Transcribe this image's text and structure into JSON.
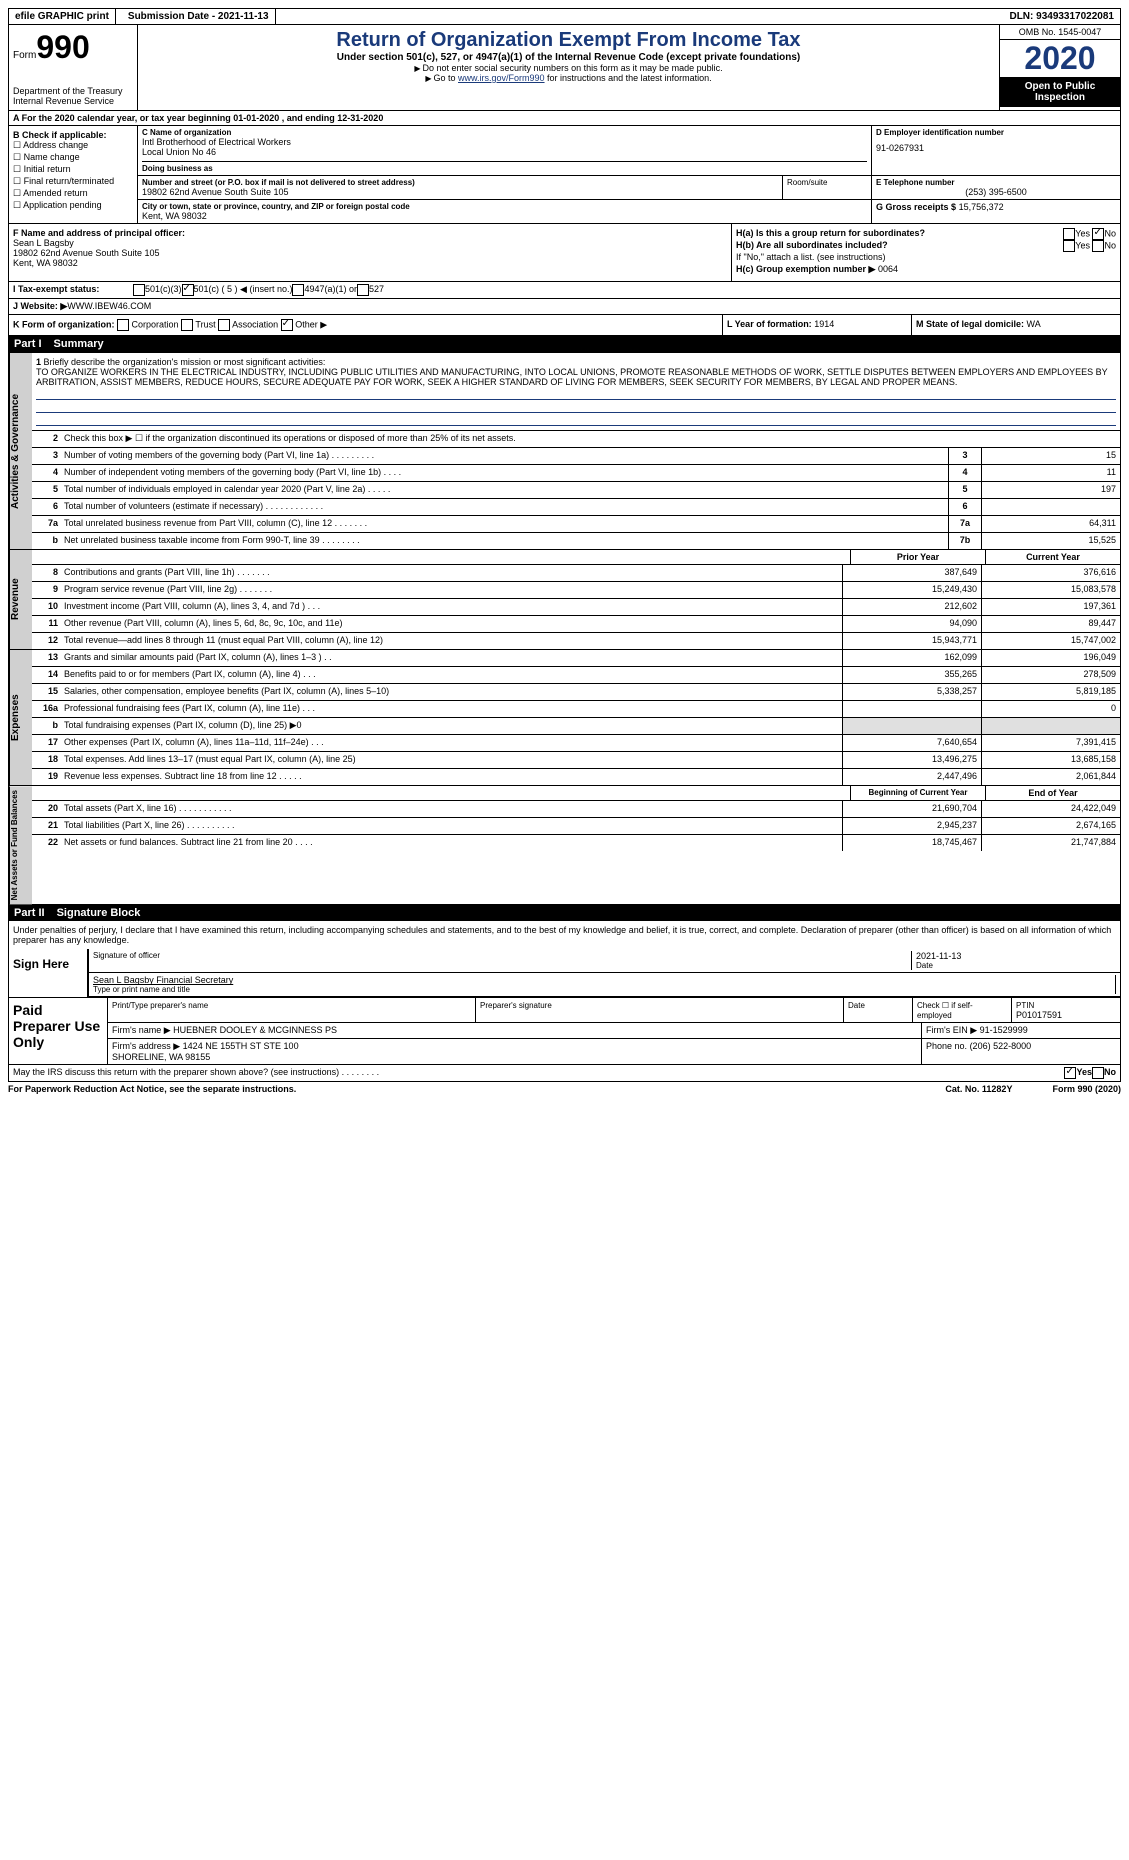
{
  "topbar": {
    "efile": "efile GRAPHIC print",
    "submission": "Submission Date - 2021-11-13",
    "dln": "DLN: 93493317022081"
  },
  "header": {
    "form_word": "Form",
    "form_num": "990",
    "dept": "Department of the Treasury\nInternal Revenue Service",
    "title": "Return of Organization Exempt From Income Tax",
    "subtitle": "Under section 501(c), 527, or 4947(a)(1) of the Internal Revenue Code (except private foundations)",
    "note1": "Do not enter social security numbers on this form as it may be made public.",
    "note2_pre": "Go to ",
    "note2_link": "www.irs.gov/Form990",
    "note2_post": " for instructions and the latest information.",
    "omb": "OMB No. 1545-0047",
    "year": "2020",
    "open": "Open to Public Inspection"
  },
  "rowA": "A For the 2020 calendar year, or tax year beginning 01-01-2020   , and ending 12-31-2020",
  "boxB": {
    "label": "B Check if applicable:",
    "items": [
      "Address change",
      "Name change",
      "Initial return",
      "Final return/terminated",
      "Amended return",
      "Application pending"
    ]
  },
  "boxC": {
    "name_label": "C Name of organization",
    "name": "Intl Brotherhood of Electrical Workers\nLocal Union No 46",
    "dba_label": "Doing business as",
    "street_label": "Number and street (or P.O. box if mail is not delivered to street address)",
    "suite_label": "Room/suite",
    "street": "19802 62nd Avenue South Suite 105",
    "city_label": "City or town, state or province, country, and ZIP or foreign postal code",
    "city": "Kent, WA  98032"
  },
  "boxD": {
    "label": "D Employer identification number",
    "value": "91-0267931"
  },
  "boxE": {
    "label": "E Telephone number",
    "value": "(253) 395-6500"
  },
  "boxG": {
    "label": "G Gross receipts $",
    "value": "15,756,372"
  },
  "boxF": {
    "label": "F Name and address of principal officer:",
    "name": "Sean L Bagsby",
    "addr1": "19802 62nd Avenue South Suite 105",
    "addr2": "Kent, WA  98032"
  },
  "boxH": {
    "a": "H(a)  Is this a group return for subordinates?",
    "b": "H(b)  Are all subordinates included?",
    "b_note": "If \"No,\" attach a list. (see instructions)",
    "c": "H(c)  Group exemption number ▶",
    "c_val": "0064",
    "yes": "Yes",
    "no": "No"
  },
  "rowI": {
    "label": "I  Tax-exempt status:",
    "opts": [
      "501(c)(3)",
      "501(c) ( 5 ) ◀ (insert no.)",
      "4947(a)(1) or",
      "527"
    ]
  },
  "rowJ": {
    "label": "J  Website: ▶",
    "value": "WWW.IBEW46.COM"
  },
  "rowK": {
    "label": "K Form of organization:",
    "opts": [
      "Corporation",
      "Trust",
      "Association",
      "Other ▶"
    ],
    "l_label": "L Year of formation:",
    "l_val": "1914",
    "m_label": "M State of legal domicile:",
    "m_val": "WA"
  },
  "partI": {
    "num": "Part I",
    "title": "Summary"
  },
  "mission": {
    "num": "1",
    "label": "Briefly describe the organization's mission or most significant activities:",
    "text": "TO ORGANIZE WORKERS IN THE ELECTRICAL INDUSTRY, INCLUDING PUBLIC UTILITIES AND MANUFACTURING, INTO LOCAL UNIONS, PROMOTE REASONABLE METHODS OF WORK, SETTLE DISPUTES BETWEEN EMPLOYERS AND EMPLOYEES BY ARBITRATION, ASSIST MEMBERS, REDUCE HOURS, SECURE ADEQUATE PAY FOR WORK, SEEK A HIGHER STANDARD OF LIVING FOR MEMBERS, SEEK SECURITY FOR MEMBERS, BY LEGAL AND PROPER MEANS."
  },
  "gov_lines": [
    {
      "n": "2",
      "d": "Check this box ▶ ☐ if the organization discontinued its operations or disposed of more than 25% of its net assets."
    },
    {
      "n": "3",
      "d": "Number of voting members of the governing body (Part VI, line 1a)   .   .   .   .   .   .   .   .   .",
      "b": "3",
      "v": "15"
    },
    {
      "n": "4",
      "d": "Number of independent voting members of the governing body (Part VI, line 1b)   .   .   .   .",
      "b": "4",
      "v": "11"
    },
    {
      "n": "5",
      "d": "Total number of individuals employed in calendar year 2020 (Part V, line 2a)   .   .   .   .   .",
      "b": "5",
      "v": "197"
    },
    {
      "n": "6",
      "d": "Total number of volunteers (estimate if necessary)   .   .   .   .   .   .   .   .   .   .   .   .",
      "b": "6",
      "v": ""
    },
    {
      "n": "7a",
      "d": "Total unrelated business revenue from Part VIII, column (C), line 12   .   .   .   .   .   .   .",
      "b": "7a",
      "v": "64,311"
    },
    {
      "n": "b",
      "d": "Net unrelated business taxable income from Form 990-T, line 39   .   .   .   .   .   .   .   .",
      "b": "7b",
      "v": "15,525"
    }
  ],
  "col_headers": {
    "prior": "Prior Year",
    "current": "Current Year"
  },
  "revenue": [
    {
      "n": "8",
      "d": "Contributions and grants (Part VIII, line 1h)   .   .   .   .   .   .   .",
      "p": "387,649",
      "c": "376,616"
    },
    {
      "n": "9",
      "d": "Program service revenue (Part VIII, line 2g)   .   .   .   .   .   .   .",
      "p": "15,249,430",
      "c": "15,083,578"
    },
    {
      "n": "10",
      "d": "Investment income (Part VIII, column (A), lines 3, 4, and 7d )   .   .   .",
      "p": "212,602",
      "c": "197,361"
    },
    {
      "n": "11",
      "d": "Other revenue (Part VIII, column (A), lines 5, 6d, 8c, 9c, 10c, and 11e)",
      "p": "94,090",
      "c": "89,447"
    },
    {
      "n": "12",
      "d": "Total revenue—add lines 8 through 11 (must equal Part VIII, column (A), line 12)",
      "p": "15,943,771",
      "c": "15,747,002"
    }
  ],
  "expenses": [
    {
      "n": "13",
      "d": "Grants and similar amounts paid (Part IX, column (A), lines 1–3 )   .   .",
      "p": "162,099",
      "c": "196,049"
    },
    {
      "n": "14",
      "d": "Benefits paid to or for members (Part IX, column (A), line 4)   .   .   .",
      "p": "355,265",
      "c": "278,509"
    },
    {
      "n": "15",
      "d": "Salaries, other compensation, employee benefits (Part IX, column (A), lines 5–10)",
      "p": "5,338,257",
      "c": "5,819,185"
    },
    {
      "n": "16a",
      "d": "Professional fundraising fees (Part IX, column (A), line 11e)   .   .   .",
      "p": "",
      "c": "0"
    },
    {
      "n": "b",
      "d": "Total fundraising expenses (Part IX, column (D), line 25) ▶0",
      "p": "",
      "c": "",
      "gray": true
    },
    {
      "n": "17",
      "d": "Other expenses (Part IX, column (A), lines 11a–11d, 11f–24e)   .   .   .",
      "p": "7,640,654",
      "c": "7,391,415"
    },
    {
      "n": "18",
      "d": "Total expenses. Add lines 13–17 (must equal Part IX, column (A), line 25)",
      "p": "13,496,275",
      "c": "13,685,158"
    },
    {
      "n": "19",
      "d": "Revenue less expenses. Subtract line 18 from line 12   .   .   .   .   .",
      "p": "2,447,496",
      "c": "2,061,844"
    }
  ],
  "net_headers": {
    "begin": "Beginning of Current Year",
    "end": "End of Year"
  },
  "netassets": [
    {
      "n": "20",
      "d": "Total assets (Part X, line 16)   .   .   .   .   .   .   .   .   .   .   .",
      "p": "21,690,704",
      "c": "24,422,049"
    },
    {
      "n": "21",
      "d": "Total liabilities (Part X, line 26)   .   .   .   .   .   .   .   .   .   .",
      "p": "2,945,237",
      "c": "2,674,165"
    },
    {
      "n": "22",
      "d": "Net assets or fund balances. Subtract line 21 from line 20   .   .   .   .",
      "p": "18,745,467",
      "c": "21,747,884"
    }
  ],
  "vtabs": {
    "gov": "Activities & Governance",
    "rev": "Revenue",
    "exp": "Expenses",
    "net": "Net Assets or Fund Balances"
  },
  "partII": {
    "num": "Part II",
    "title": "Signature Block"
  },
  "sig": {
    "penalty": "Under penalties of perjury, I declare that I have examined this return, including accompanying schedules and statements, and to the best of my knowledge and belief, it is true, correct, and complete. Declaration of preparer (other than officer) is based on all information of which preparer has any knowledge.",
    "sign_here": "Sign Here",
    "sig_officer": "Signature of officer",
    "date": "Date",
    "date_val": "2021-11-13",
    "name_line": "Sean L Bagsby  Financial Secretary",
    "name_sub": "Type or print name and title"
  },
  "prep": {
    "label": "Paid Preparer Use Only",
    "h1": "Print/Type preparer's name",
    "h2": "Preparer's signature",
    "h3": "Date",
    "h4": "Check ☐ if self-employed",
    "h5": "PTIN",
    "ptin": "P01017591",
    "firm_name_label": "Firm's name    ▶",
    "firm_name": "HUEBNER DOOLEY & MCGINNESS PS",
    "firm_ein_label": "Firm's EIN ▶",
    "firm_ein": "91-1529999",
    "firm_addr_label": "Firm's address ▶",
    "firm_addr": "1424 NE 155TH ST STE 100\nSHORELINE, WA  98155",
    "phone_label": "Phone no.",
    "phone": "(206) 522-8000"
  },
  "discuss": {
    "text": "May the IRS discuss this return with the preparer shown above? (see instructions)   .   .   .   .   .   .   .   .",
    "yes": "Yes",
    "no": "No"
  },
  "footer": {
    "left": "For Paperwork Reduction Act Notice, see the separate instructions.",
    "mid": "Cat. No. 11282Y",
    "right": "Form 990 (2020)"
  }
}
